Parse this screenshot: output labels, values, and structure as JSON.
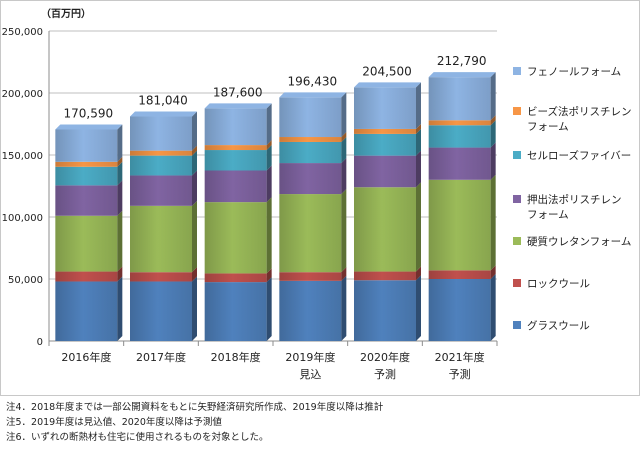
{
  "chart_data": {
    "type": "bar",
    "stacked": true,
    "unit_label": "（百万円）",
    "categories": [
      [
        "2016年度"
      ],
      [
        "2017年度"
      ],
      [
        "2018年度"
      ],
      [
        "2019年度",
        "見込"
      ],
      [
        "2020年度",
        "予測"
      ],
      [
        "2021年度",
        "予測"
      ]
    ],
    "ylim": [
      0,
      250000
    ],
    "yticks": [
      "0",
      "50,000",
      "100,000",
      "150,000",
      "200,000",
      "250,000"
    ],
    "ytick_values": [
      0,
      50000,
      100000,
      150000,
      200000,
      250000
    ],
    "grid": true,
    "legend_position": "right",
    "totals": [
      "170,590",
      "181,040",
      "187,600",
      "196,430",
      "204,500",
      "212,790"
    ],
    "series": [
      {
        "name": "グラスウール",
        "color": "#4f81bd",
        "values": [
          48000,
          48000,
          47500,
          48500,
          49000,
          50000
        ]
      },
      {
        "name": "ロックウール",
        "color": "#c0504d",
        "values": [
          8000,
          7500,
          7000,
          7000,
          7000,
          7000
        ]
      },
      {
        "name": "硬質ウレタンフォーム",
        "color": "#9bbb59",
        "values": [
          45000,
          53500,
          57500,
          63000,
          68000,
          73000
        ]
      },
      {
        "name": "押出法ポリスチレンフォーム",
        "color": "#8064a2",
        "values": [
          24500,
          24500,
          25500,
          25000,
          25500,
          26000
        ]
      },
      {
        "name": "セルローズファイバー",
        "color": "#4bacc6",
        "values": [
          15000,
          16000,
          16500,
          17000,
          17500,
          18000
        ]
      },
      {
        "name": "ビーズ法ポリスチレンフォーム",
        "color": "#f79646",
        "values": [
          4000,
          4000,
          4000,
          4000,
          4000,
          4000
        ]
      },
      {
        "name": "フェノールフォーム",
        "color": "#8eb4e3",
        "values": [
          26090,
          27540,
          29600,
          31930,
          33500,
          34790
        ]
      }
    ],
    "legend": [
      {
        "series": 6,
        "lines": [
          "フェノールフォーム"
        ]
      },
      {
        "series": 5,
        "lines": [
          "ビーズ法ポリスチレン",
          "フォーム"
        ]
      },
      {
        "series": 4,
        "lines": [
          "セルローズファイバー"
        ]
      },
      {
        "series": 3,
        "lines": [
          "押出法ポリスチレン",
          "フォーム"
        ]
      },
      {
        "series": 2,
        "lines": [
          "硬質ウレタンフォーム"
        ]
      },
      {
        "series": 1,
        "lines": [
          "ロックウール"
        ]
      },
      {
        "series": 0,
        "lines": [
          "グラスウール"
        ]
      }
    ]
  },
  "notes": [
    "注4．2018年度までは一部公開資料をもとに矢野経済研究所作成、2019年度以降は推計",
    "注5．2019年度は見込値、2020年度以降は予測値",
    "注6．いずれの断熱材も住宅に使用されるものを対象とした。"
  ]
}
